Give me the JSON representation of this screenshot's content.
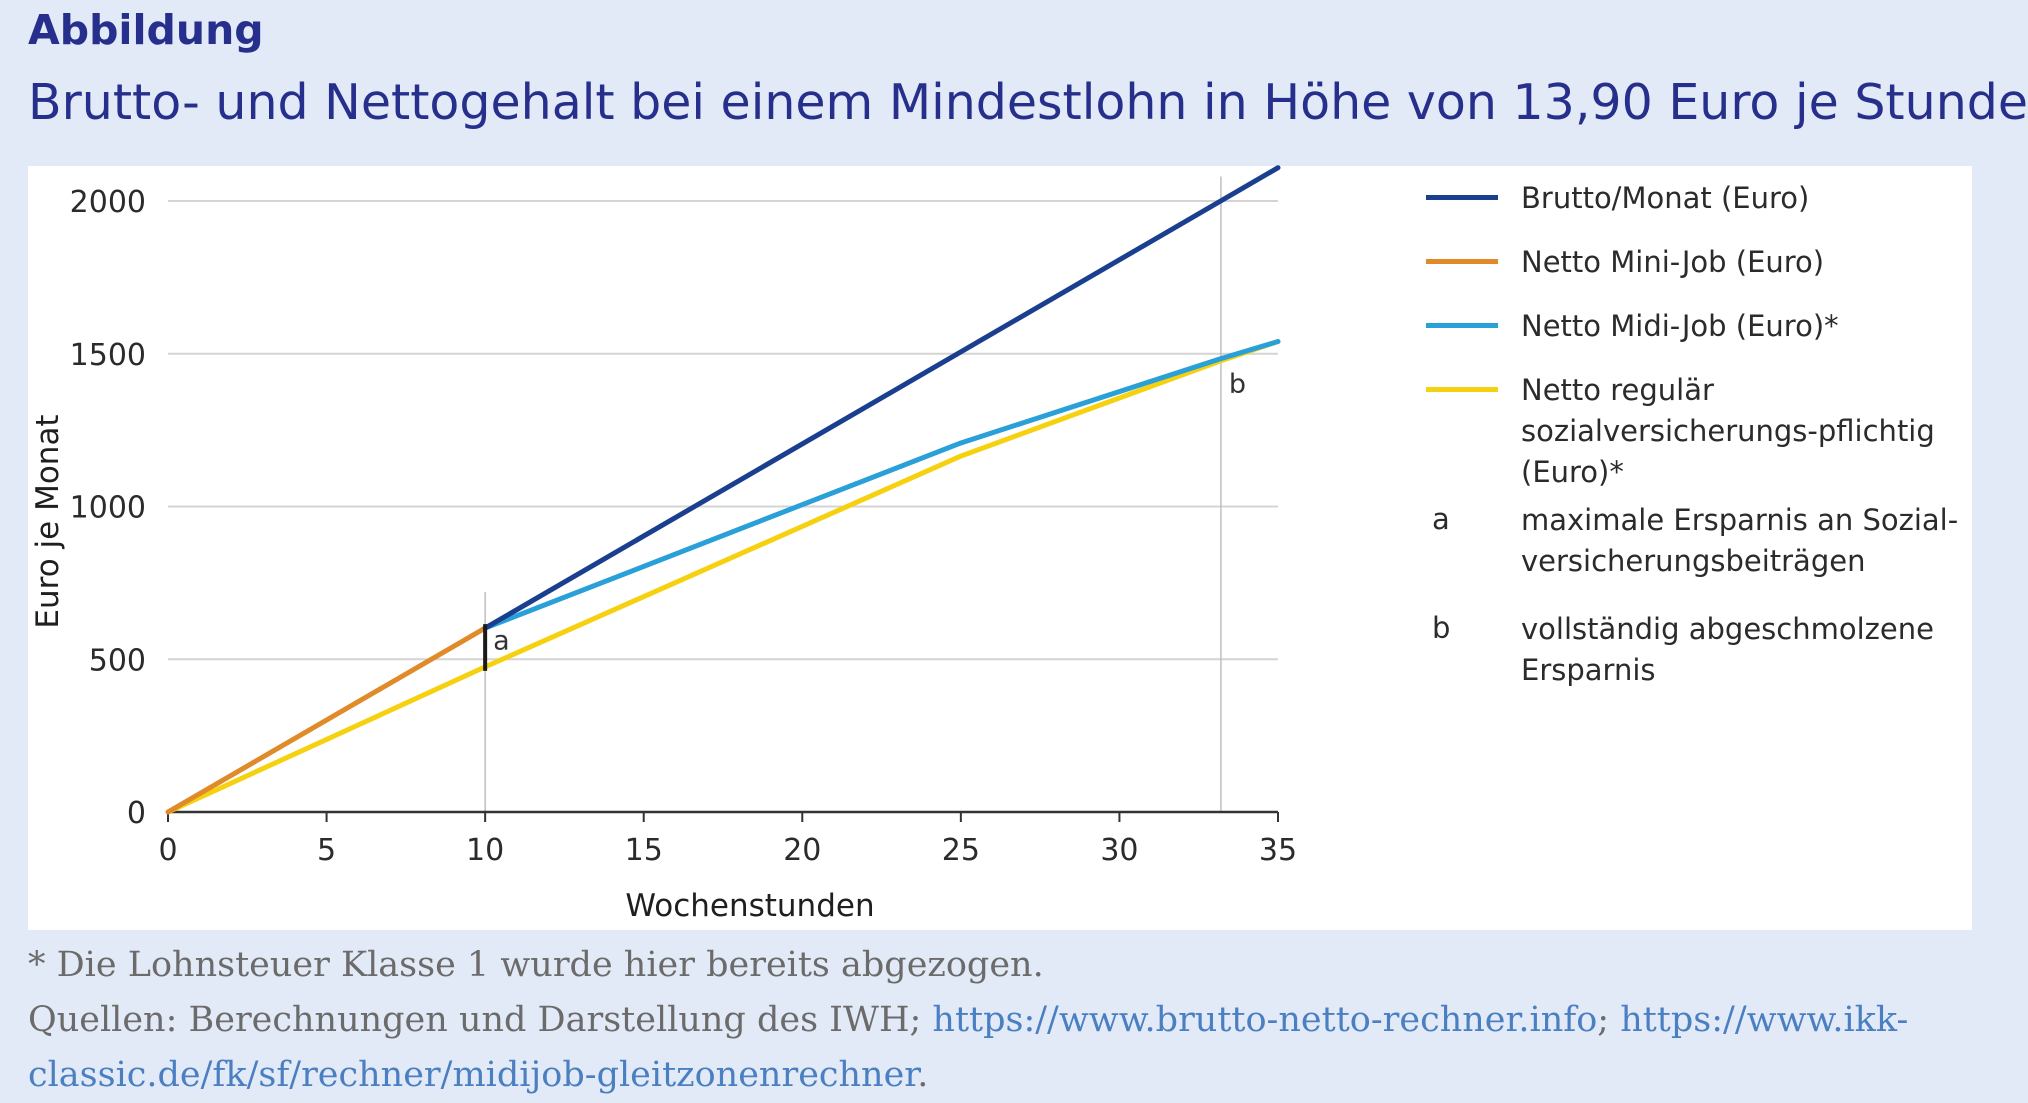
{
  "header": {
    "eyebrow": "Abbildung",
    "title": "Brutto- und Nettogehalt bei einem Mindestlohn in Höhe von 13,90 Euro je Stunde"
  },
  "chart_data": {
    "type": "line",
    "xlabel": "Wochenstunden",
    "ylabel": "Euro je Monat",
    "xlim": [
      0,
      35
    ],
    "ylim": [
      0,
      2000
    ],
    "xticks": [
      0,
      5,
      10,
      15,
      20,
      25,
      30,
      35
    ],
    "yticks": [
      0,
      500,
      1000,
      1500,
      2000
    ],
    "grid": "horizontal",
    "legend_position": "right",
    "series": [
      {
        "name": "Brutto/Monat (Euro)",
        "color": "#1b3f8f",
        "x": [
          10,
          35
        ],
        "y": [
          602,
          2109
        ]
      },
      {
        "name": "Netto Mini-Job (Euro)",
        "color": "#e08a2a",
        "x": [
          0,
          10
        ],
        "y": [
          0,
          602
        ]
      },
      {
        "name": "Netto Midi-Job (Euro)*",
        "color": "#2aa0d8",
        "x": [
          10,
          25,
          33.2,
          35
        ],
        "y": [
          602,
          1208,
          1484,
          1540
        ]
      },
      {
        "name": "Netto regulär sozialversicherungs-pflichtig (Euro)*",
        "color": "#f6d10f",
        "x": [
          0,
          10,
          25,
          33.2,
          35
        ],
        "y": [
          0,
          475,
          1165,
          1477,
          1540
        ]
      }
    ],
    "reference_lines": [
      {
        "x": 10,
        "y_to": 720
      },
      {
        "x": 33.2,
        "y_to": 2080
      }
    ],
    "annotations": [
      {
        "key": "a",
        "x": 10,
        "y_from": 475,
        "y_to": 602,
        "description": "maximale Ersparnis an Sozial-versicherungsbeiträgen"
      },
      {
        "key": "b",
        "x": 33.2,
        "y": 1477,
        "description": "vollständig abgeschmolzene Ersparnis"
      }
    ]
  },
  "legend": {
    "items": [
      {
        "kind": "line",
        "color": "#1b3f8f",
        "label": "Brutto/Monat (Euro)"
      },
      {
        "kind": "line",
        "color": "#e08a2a",
        "label": "Netto Mini-Job (Euro)"
      },
      {
        "kind": "line",
        "color": "#2aa0d8",
        "label": "Netto Midi-Job (Euro)*"
      },
      {
        "kind": "line",
        "color": "#f6d10f",
        "label": "Netto regulär sozialversicherungs-pflichtig (Euro)*"
      },
      {
        "kind": "key",
        "key": "a",
        "label": "maximale Ersparnis an Sozial-versicherungsbeiträgen"
      },
      {
        "kind": "key",
        "key": "b",
        "label": "vollständig abgeschmolzene Ersparnis"
      }
    ]
  },
  "footnote": {
    "note": "* Die Lohnsteuer Klasse 1 wurde hier bereits abgezogen.",
    "sources_prefix": "Quellen: Berechnungen und Darstellung des IWH; ",
    "link1": "https://www.brutto-netto-rechner.info",
    "separator": "; ",
    "link2": "https://www.ikk-classic.de/fk/sf/rechner/midijob-gleitzonenrechner",
    "end": "."
  }
}
